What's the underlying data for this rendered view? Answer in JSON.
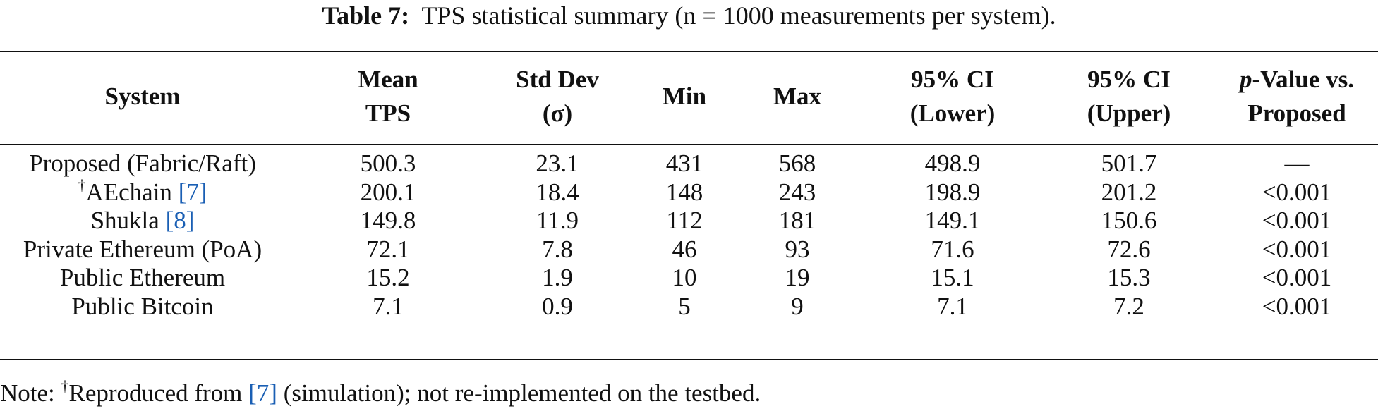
{
  "caption": {
    "label": "Table 7:",
    "text": "TPS statistical summary (n = 1000 measurements per system)."
  },
  "headers": {
    "system": "System",
    "mean_1": "Mean",
    "mean_2": "TPS",
    "std_1": "Std Dev",
    "std_2": "(σ)",
    "min": "Min",
    "max": "Max",
    "ci_lower_1": "95% CI",
    "ci_lower_2": "(Lower)",
    "ci_upper_1": "95% CI",
    "ci_upper_2": "(Upper)",
    "pvalue_italic": "p",
    "pvalue_1": "-Value vs.",
    "pvalue_2": "Proposed"
  },
  "rows": [
    {
      "system": "Proposed (Fabric/Raft)",
      "dagger": "",
      "ref": "",
      "mean": "500.3",
      "std": "23.1",
      "min": "431",
      "max": "568",
      "ci_lower": "498.9",
      "ci_upper": "501.7",
      "p": "—"
    },
    {
      "system": "AEchain ",
      "dagger": "†",
      "ref": "[7]",
      "mean": "200.1",
      "std": "18.4",
      "min": "148",
      "max": "243",
      "ci_lower": "198.9",
      "ci_upper": "201.2",
      "p": "<0.001"
    },
    {
      "system": "Shukla ",
      "dagger": "",
      "ref": "[8]",
      "mean": "149.8",
      "std": "11.9",
      "min": "112",
      "max": "181",
      "ci_lower": "149.1",
      "ci_upper": "150.6",
      "p": "<0.001"
    },
    {
      "system": "Private Ethereum (PoA)",
      "dagger": "",
      "ref": "",
      "mean": "72.1",
      "std": "7.8",
      "min": "46",
      "max": "93",
      "ci_lower": "71.6",
      "ci_upper": "72.6",
      "p": "<0.001"
    },
    {
      "system": "Public Ethereum",
      "dagger": "",
      "ref": "",
      "mean": "15.2",
      "std": "1.9",
      "min": "10",
      "max": "19",
      "ci_lower": "15.1",
      "ci_upper": "15.3",
      "p": "<0.001"
    },
    {
      "system": "Public Bitcoin",
      "dagger": "",
      "ref": "",
      "mean": "7.1",
      "std": "0.9",
      "min": "5",
      "max": "9",
      "ci_lower": "7.1",
      "ci_upper": "7.2",
      "p": "<0.001"
    }
  ],
  "note": {
    "prefix": "Note: ",
    "dagger": "†",
    "text_before": "Reproduced from ",
    "ref": "[7]",
    "text_after": " (simulation); not re-implemented on the testbed."
  },
  "colors": {
    "text": "#111111",
    "reference_link": "#1a5fb4"
  }
}
